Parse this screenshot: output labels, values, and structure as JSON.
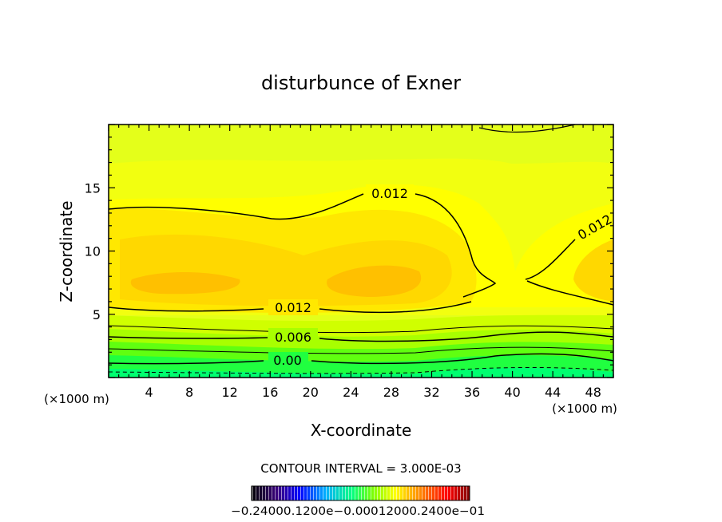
{
  "chart_data": {
    "type": "heatmap",
    "subtype": "filled-contour",
    "title": "disturbunce of Exner",
    "xlabel": "X-coordinate",
    "ylabel": "Z-coordinate",
    "x_unit": "(×1000 m)",
    "y_unit": "(×1000 m)",
    "xlim": [
      0,
      50
    ],
    "ylim": [
      0,
      20
    ],
    "x_ticks": [
      "4",
      "8",
      "12",
      "16",
      "20",
      "24",
      "28",
      "32",
      "36",
      "40",
      "44",
      "48"
    ],
    "y_ticks": [
      "5",
      "10",
      "15"
    ],
    "contour_labels": [
      "0.012",
      "0.012",
      "0.012",
      "0.006",
      "0.00"
    ],
    "contour_interval_text": "CONTOUR INTERVAL = 3.000E-03",
    "colorbar_labels": [
      "-0.2400e-01",
      "-0.1200e-01",
      "0.0000",
      "0.1200e-01",
      "0.2400e-01"
    ],
    "colorbar_label_text": "−0.24000.1200e−0.00012000.2400e−01",
    "colormap": [
      "#000000",
      "#3a0080",
      "#0000ff",
      "#00b0ff",
      "#00ff80",
      "#80ff00",
      "#ffff00",
      "#ff8000",
      "#ff0000",
      "#800000"
    ],
    "grid": false
  }
}
